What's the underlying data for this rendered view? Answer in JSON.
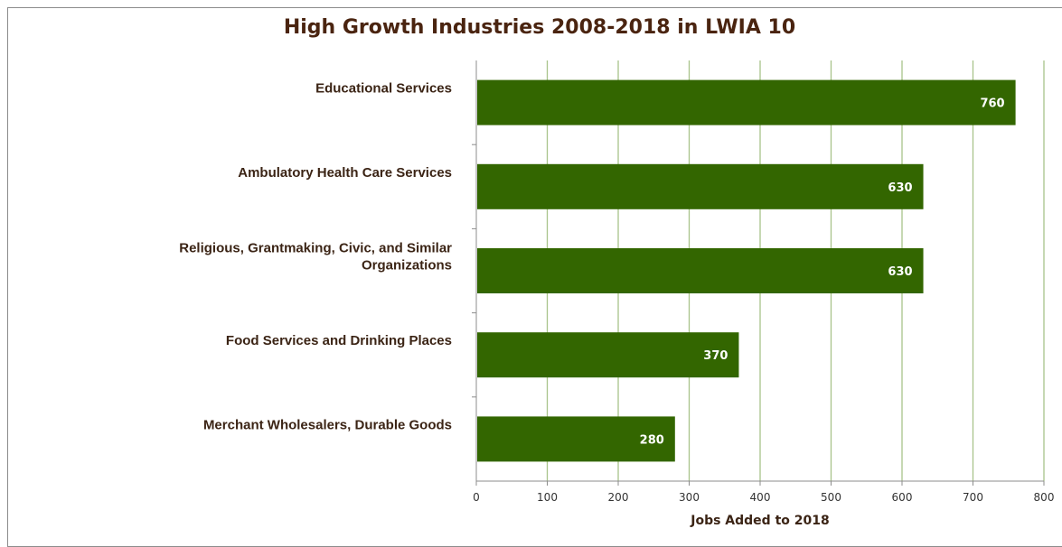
{
  "chart_data": {
    "type": "bar",
    "orientation": "horizontal",
    "title": "High Growth Industries 2008-2018 in LWIA 10",
    "xlabel": "Jobs Added to 2018",
    "ylabel": "",
    "categories": [
      [
        "Educational Services"
      ],
      [
        "Ambulatory Health Care Services"
      ],
      [
        "Religious, Grantmaking, Civic, and Similar",
        "Organizations"
      ],
      [
        "Food Services and Drinking Places"
      ],
      [
        "Merchant Wholesalers, Durable Goods"
      ]
    ],
    "values": [
      760,
      630,
      630,
      370,
      280
    ],
    "data_labels": [
      "760",
      "630",
      "630",
      "370",
      "280"
    ],
    "xlim": [
      0,
      800
    ],
    "x_ticks": [
      "0",
      "100",
      "200",
      "300",
      "400",
      "500",
      "600",
      "700",
      "800"
    ],
    "grid": "vertical",
    "legend": "none",
    "colors": {
      "bar": "#336600",
      "grid": "#a8c38a",
      "axis": "#8c8c8c",
      "title": "#4a2410",
      "text": "#3b2415"
    }
  }
}
